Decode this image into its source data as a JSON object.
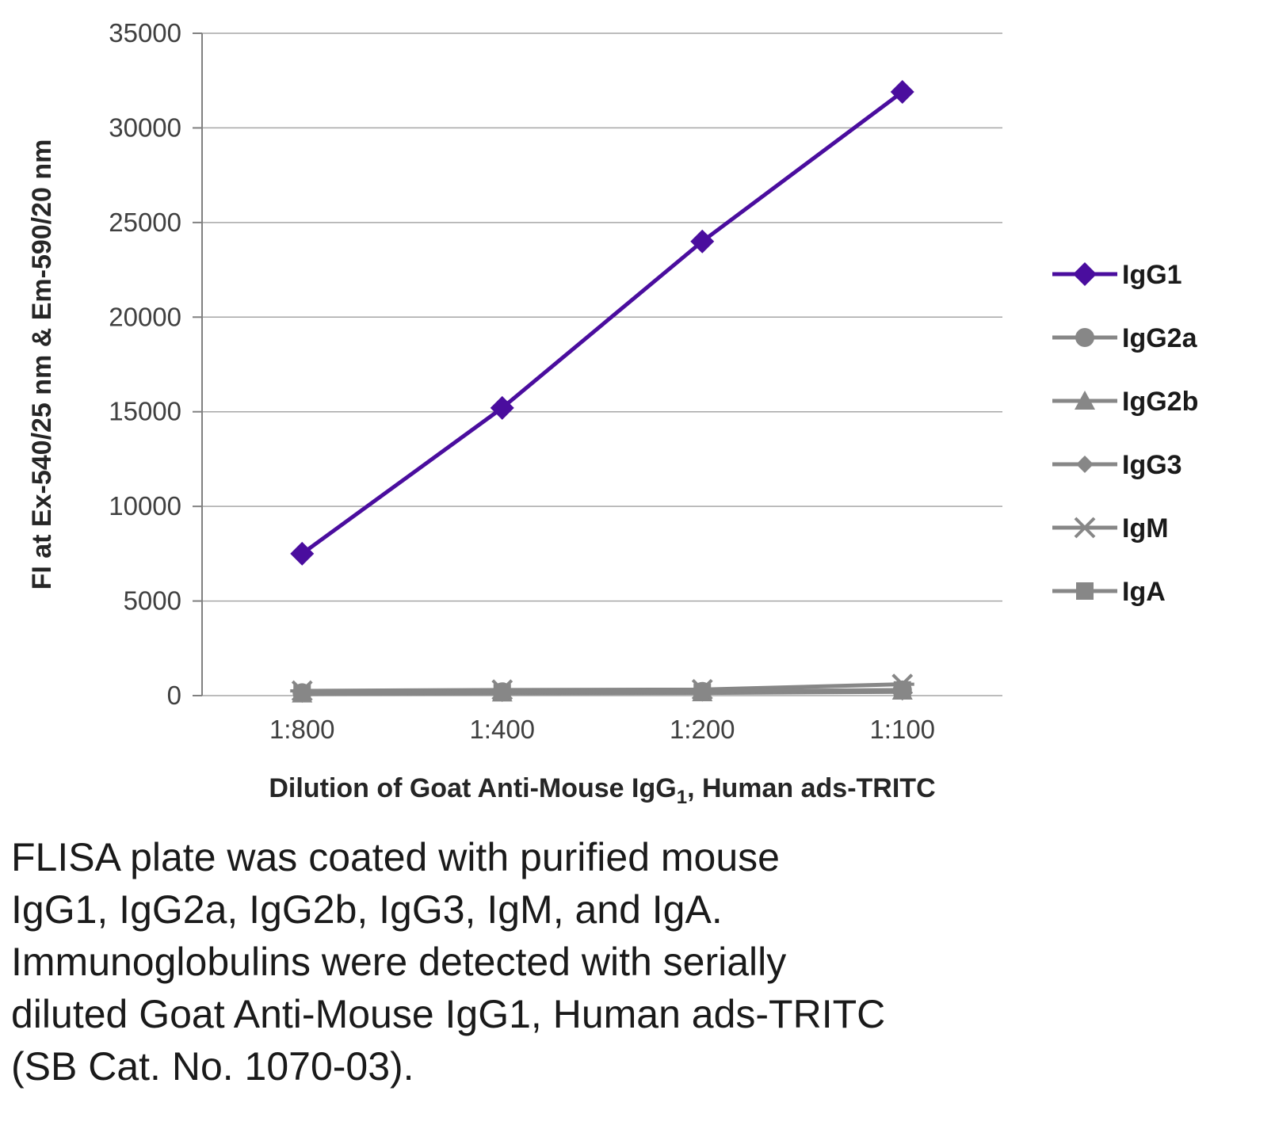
{
  "chart_data": {
    "type": "line",
    "title": "",
    "categories": [
      "1:800",
      "1:400",
      "1:200",
      "1:100"
    ],
    "series": [
      {
        "name": "IgG1",
        "marker": "diamond",
        "color": "#4a0d9e",
        "values": [
          7500,
          15200,
          24000,
          31900
        ]
      },
      {
        "name": "IgG2a",
        "marker": "circle",
        "color": "#878787",
        "values": [
          150,
          200,
          220,
          300
        ]
      },
      {
        "name": "IgG2b",
        "marker": "triangle",
        "color": "#878787",
        "values": [
          100,
          150,
          160,
          250
        ]
      },
      {
        "name": "IgG3",
        "marker": "diamond-small",
        "color": "#878787",
        "values": [
          80,
          120,
          140,
          200
        ]
      },
      {
        "name": "IgM",
        "marker": "asterisk",
        "color": "#878787",
        "values": [
          250,
          300,
          320,
          600
        ]
      },
      {
        "name": "IgA",
        "marker": "square",
        "color": "#878787",
        "values": [
          120,
          160,
          180,
          300
        ]
      }
    ],
    "ylabel": "FI at Ex-540/25 nm & Em-590/20 nm",
    "xlabel_prefix": "Dilution of Goat Anti-Mouse IgG",
    "xlabel_sub": "1",
    "xlabel_suffix": ", Human ads-TRITC",
    "ylim": [
      0,
      35000
    ],
    "ytick_step": 5000,
    "grid": true,
    "legend_position": "right"
  },
  "caption_lines": [
    "FLISA plate was coated with purified mouse",
    "IgG1, IgG2a, IgG2b, IgG3, IgM, and IgA.",
    "Immunoglobulins were detected with serially",
    "diluted Goat Anti-Mouse IgG1, Human ads-TRITC",
    "(SB Cat. No. 1070-03)."
  ],
  "colors": {
    "gridline": "#a6a6a6",
    "axis": "#808080",
    "accent_purple": "#4a0d9e",
    "series_gray": "#878787"
  }
}
